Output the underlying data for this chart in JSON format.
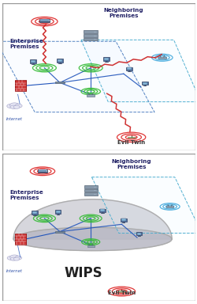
{
  "fig_width": 2.5,
  "fig_height": 3.84,
  "dpi": 100,
  "panel1": {
    "enterprise_label": "Enterprise\nPremises",
    "neighboring_label": "Neighboring\nPremises",
    "evil_twin_label": "Evil Twin",
    "internet_label": "Internet",
    "blue_line_color": "#2255bb",
    "red_line_color": "#cc2222",
    "green_ring_color": "#33bb33",
    "red_ring_color": "#dd2222",
    "blue_ring_color": "#44aadd",
    "yellow_ring_color": "#ddcc22"
  },
  "panel2": {
    "enterprise_label": "Enterprise\nPremises",
    "neighboring_label": "Neighboring\nPremises",
    "evil_twin_label": "Evil Twin",
    "internet_label": "Internet",
    "wips_label": "WIPS",
    "blue_line_color": "#2255bb",
    "green_ring_color": "#33bb33",
    "red_ring_color": "#dd2222",
    "blue_ring_color": "#44aadd",
    "dome_color1": "#d0d0d8",
    "dome_color2": "#b8b8c4"
  }
}
